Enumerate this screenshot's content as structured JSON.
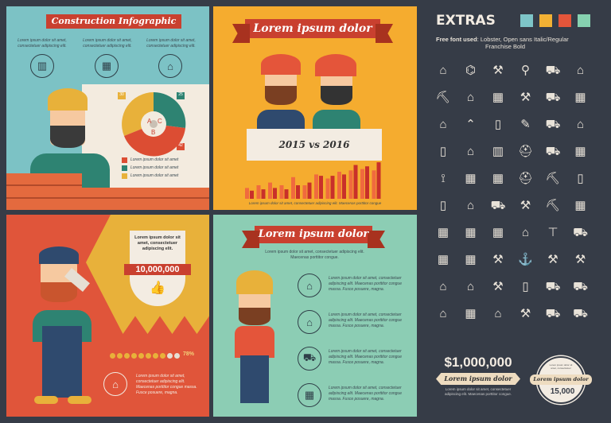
{
  "panel1": {
    "title": "Construction Infographic",
    "captions": [
      "Lorem ipsum dolor sit amet, consectetuer adipiscing elit.",
      "Lorem ipsum dolor sit amet, consectetuer adipiscing elit.",
      "Lorem ipsum dolor sit amet, consectetuer adipiscing elit."
    ],
    "icons": [
      "house-building-icon",
      "building-icon",
      "house-icon"
    ],
    "gear_chart": {
      "segments": [
        {
          "label": "A",
          "value": "30",
          "color": "#e8b13a"
        },
        {
          "label": "C",
          "value": "25",
          "color": "#2e8372"
        },
        {
          "label": "B",
          "value": "42",
          "color": "#dc4d33"
        }
      ]
    },
    "legend": [
      "Lorem ipsum dolor sit amet",
      "Lorem ipsum dolor sit amet",
      "Lorem ipsum dolor sit amet"
    ]
  },
  "panel2": {
    "title": "Lorem ipsum dolor",
    "banner": "2015 vs 2016",
    "caption": "Lorem ipsum dolor sit amet, consectetuer adipiscing elit. Maecenas porttitor congue",
    "bars": [
      [
        4,
        3
      ],
      [
        5,
        3.5
      ],
      [
        6,
        4
      ],
      [
        5,
        3.5
      ],
      [
        8,
        5
      ],
      [
        5,
        6
      ],
      [
        9,
        8.5
      ],
      [
        7.5,
        8.5
      ],
      [
        10,
        9
      ],
      [
        10.5,
        12.5
      ],
      [
        11,
        12
      ],
      [
        10.5,
        13.5
      ]
    ]
  },
  "panel3": {
    "quote": "Lorem ipsum dolor sit amet, consectetuer adipiscing elit.",
    "count": "10,000,000",
    "progress_percent": 78,
    "progress_label": "78%",
    "caption": "Lorem ipsum dolor sit amet, consectetuer adipiscing elit. Maecenas porttitor congue massa. Fusce posuere, magna."
  },
  "panel4": {
    "title": "Lorem ipsum dolor",
    "subtitle": "Lorem ipsum dolor sit amet, consectetuer adipiscing elit. Maecenas porttitor congue.",
    "items": [
      {
        "icon": "house-worker-icon",
        "text": "Lorem ipsum dolor sit amet, consectetuer adipiscing elit. Maecenas porttitor congue massa. Fusce posuere, magna."
      },
      {
        "icon": "house-paint-icon",
        "text": "Lorem ipsum dolor sit amet, consectetuer adipiscing elit. Maecenas porttitor congue massa. Fusce posuere, magna."
      },
      {
        "icon": "wheelbarrow-icon",
        "text": "Lorem ipsum dolor sit amet, consectetuer adipiscing elit. Maecenas porttitor congue massa. Fusce posuere, magna."
      },
      {
        "icon": "brick-wall-icon",
        "text": "Lorem ipsum dolor sit amet, consectetuer adipiscing elit. Maecenas porttitor congue massa. Fusce posuere, magna."
      }
    ]
  },
  "extras": {
    "title": "EXTRAS",
    "swatches": [
      "#7ec5c8",
      "#f2b134",
      "#e4553a",
      "#86d1b0"
    ],
    "font_label": "Free font used",
    "font_text": ": Lobster, Open sans Italic/Regular",
    "font_text2": "Franchise Bold",
    "icon_glyphs": "⌂⌬⚒⚲⛟⌂⛏⌂▦⚒⛟▦⌂⌃▯✎⛟⌂▯⌂▥⛑⛟▦⟟▦▦⛑⛏▯▯⌂⛟⚒⛏▦▦▦▦⌂⊤⛟▦▦⚒⚓⚒⚒⌂⌂⚒▯⛟⛟⌂▦⌂⚒⛟⛟",
    "money": "$1,000,000",
    "money_label": "Lorem ipsum dolor",
    "money_caption": "Lorem ipsum dolor sit amet, consectetuer adipiscing elit. Maecenas porttitor congue.",
    "badge_top": "Lorem ipsum dolor sit amet, consectetuer",
    "badge_label": "Lorem ipsum dolor",
    "badge_value": "15,000"
  }
}
